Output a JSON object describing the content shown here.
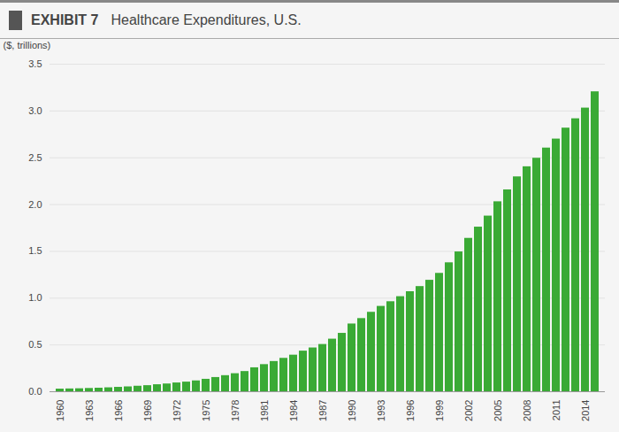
{
  "chart_data": {
    "type": "bar",
    "title": "EXHIBIT 7",
    "subtitle": "Healthcare Expenditures, U.S.",
    "ylabel": "($, trillions)",
    "categories": [
      "1960",
      null,
      null,
      "1963",
      null,
      null,
      "1966",
      null,
      null,
      "1969",
      null,
      null,
      "1972",
      null,
      null,
      "1975",
      null,
      null,
      "1978",
      null,
      null,
      "1981",
      null,
      null,
      "1984",
      null,
      null,
      "1987",
      null,
      null,
      "1990",
      null,
      null,
      "1993",
      null,
      null,
      "1996",
      null,
      null,
      "1999",
      null,
      null,
      "2002",
      null,
      null,
      "2005",
      null,
      null,
      "2008",
      null,
      null,
      "2011",
      null,
      null,
      "2014",
      null
    ],
    "values": [
      0.028,
      0.03,
      0.032,
      0.035,
      0.038,
      0.042,
      0.047,
      0.052,
      0.059,
      0.065,
      0.075,
      0.083,
      0.094,
      0.103,
      0.116,
      0.133,
      0.152,
      0.172,
      0.193,
      0.216,
      0.256,
      0.29,
      0.323,
      0.357,
      0.391,
      0.434,
      0.468,
      0.505,
      0.562,
      0.624,
      0.724,
      0.782,
      0.849,
      0.912,
      0.962,
      1.016,
      1.069,
      1.124,
      1.191,
      1.265,
      1.378,
      1.494,
      1.639,
      1.759,
      1.877,
      2.03,
      2.157,
      2.296,
      2.404,
      2.495,
      2.604,
      2.7,
      2.817,
      2.917,
      3.031,
      3.205
    ],
    "color": "#3aaa35",
    "ylim": [
      0,
      3.5
    ],
    "yticks": [
      {
        "value": 0,
        "label": "0.0"
      },
      0.5,
      {
        "value": 1,
        "label": "1.0"
      },
      1.5,
      {
        "value": 2,
        "label": "2.0"
      },
      2.5,
      {
        "value": 3,
        "label": "3.0"
      },
      3.5
    ],
    "grid": true
  }
}
